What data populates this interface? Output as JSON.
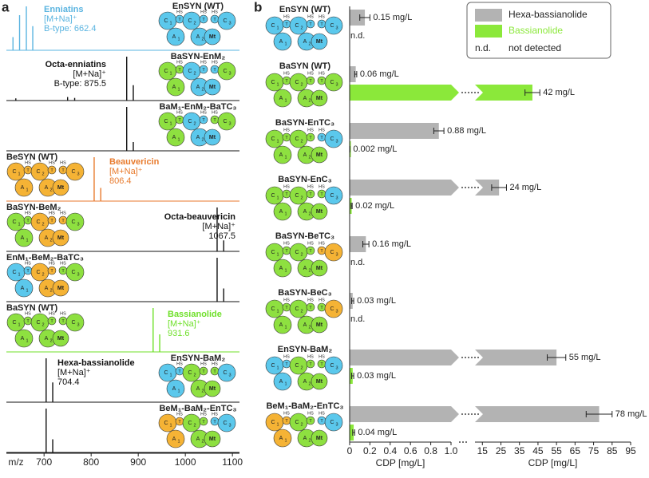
{
  "domain_labels": {
    "C": "C",
    "A": "A",
    "T": "T",
    "Mt": "Mt",
    "HS": "HS",
    "index": [
      "1",
      "2",
      "3"
    ]
  },
  "chart_data": [
    {
      "type": "spectrum",
      "panel_label": "a",
      "xlabel": "m/z",
      "xlim": [
        620,
        1115
      ],
      "xticks": [
        700,
        800,
        900,
        1000,
        1100
      ],
      "series": [
        {
          "name": "EnSYN (WT)",
          "color": "#5ab4e0",
          "domain_colors": [
            "#5bc8ec",
            "#5bc8ec",
            "#5bc8ec",
            "#5bc8ec"
          ],
          "x": [
            634,
            648,
            662.4,
            676
          ],
          "values": [
            30,
            80,
            100,
            55
          ],
          "annotation": [
            "Enniatins",
            "[M+Na]⁺",
            "B-type: 662.4"
          ]
        },
        {
          "name": "BaSYN-EnM₂",
          "color": "#111111",
          "domain_colors": [
            "#8ee040",
            "#5bc8ec",
            "#5bc8ec",
            "#8ee040"
          ],
          "x": [
            640,
            750,
            765,
            875.5,
            889.5
          ],
          "values": [
            5,
            8,
            6,
            100,
            35
          ],
          "annotation": [
            "Octa-enniatins",
            "[M+Na]⁺",
            "B-type: 875.5"
          ]
        },
        {
          "name": "BaM₁-EnM₂-BaTC₃",
          "color": "#111111",
          "domain_colors": [
            "#8ee040",
            "#5bc8ec",
            "#8ee040",
            "#8ee040"
          ],
          "x": [
            875.5,
            889.5
          ],
          "values": [
            100,
            20
          ]
        },
        {
          "name": "BeSYN (WT)",
          "color": "#e87a2c",
          "domain_colors": [
            "#f5b335",
            "#f5b335",
            "#f5b335",
            "#f5b335"
          ],
          "x": [
            806.4,
            820.4
          ],
          "values": [
            100,
            30
          ],
          "annotation": [
            "Beauvericin",
            "[M+Na]⁺",
            "806.4"
          ]
        },
        {
          "name": "BaSYN-BeM₂",
          "color": "#111111",
          "domain_colors": [
            "#8ee040",
            "#f5b335",
            "#f5b335",
            "#8ee040"
          ],
          "x": [
            1067.5,
            1081.5
          ],
          "values": [
            100,
            25
          ],
          "annotation": [
            "Octa-beauvericin",
            "[M+Na]⁺",
            "1067.5"
          ]
        },
        {
          "name": "EnM₁-BeM₂-BaTC₃",
          "color": "#111111",
          "domain_colors": [
            "#5bc8ec",
            "#f5b335",
            "#8ee040",
            "#8ee040"
          ],
          "x": [
            1067.5,
            1081.5
          ],
          "values": [
            100,
            30
          ]
        },
        {
          "name": "BaSYN (WT)",
          "color": "#6fe02a",
          "domain_colors": [
            "#8ee040",
            "#8ee040",
            "#8ee040",
            "#8ee040"
          ],
          "x": [
            931.6,
            945.6
          ],
          "values": [
            100,
            40
          ],
          "annotation": [
            "Bassianolide",
            "[M+Na]⁺",
            "931.6"
          ]
        },
        {
          "name": "EnSYN-BaM₂",
          "color": "#111111",
          "domain_colors": [
            "#5bc8ec",
            "#8ee040",
            "#8ee040",
            "#5bc8ec"
          ],
          "x": [
            704.4,
            718.4
          ],
          "values": [
            100,
            45
          ],
          "annotation": [
            "Hexa-bassianolide",
            "[M+Na]⁺",
            "704.4"
          ]
        },
        {
          "name": "BeM₁-BaM₂-EnTC₃",
          "color": "#111111",
          "domain_colors": [
            "#f5b335",
            "#8ee040",
            "#5bc8ec",
            "#5bc8ec"
          ],
          "x": [
            704.4,
            718.4
          ],
          "values": [
            100,
            30
          ]
        }
      ]
    },
    {
      "type": "broken-bar",
      "panel_label": "b",
      "legend": "upper right",
      "categories": [
        "EnSYN (WT)",
        "BaSYN (WT)",
        "BaSYN-EnTC₃",
        "BaSYN-EnC₃",
        "BaSYN-BeTC₃",
        "BaSYN-BeC₃",
        "EnSYN-BaM₂",
        "BeM₁-BaM₂-EnTC₃"
      ],
      "domain_colors": [
        [
          "#5bc8ec",
          "#5bc8ec",
          "#5bc8ec",
          "#5bc8ec"
        ],
        [
          "#8ee040",
          "#8ee040",
          "#8ee040",
          "#8ee040"
        ],
        [
          "#8ee040",
          "#8ee040",
          "#5bc8ec",
          "#5bc8ec"
        ],
        [
          "#8ee040",
          "#8ee040",
          "#8ee040",
          "#5bc8ec"
        ],
        [
          "#8ee040",
          "#8ee040",
          "#f5b335",
          "#f5b335"
        ],
        [
          "#8ee040",
          "#8ee040",
          "#8ee040",
          "#f5b335"
        ],
        [
          "#5bc8ec",
          "#8ee040",
          "#8ee040",
          "#5bc8ec"
        ],
        [
          "#f5b335",
          "#8ee040",
          "#5bc8ec",
          "#5bc8ec"
        ]
      ],
      "xlabel": "CDP [mg/L]",
      "xlim": [
        0,
        1
      ],
      "xticks": [
        0,
        0.2,
        0.4,
        0.6,
        0.8,
        {
          "value": 1,
          "label": "1.0"
        }
      ],
      "x2label": "CDP [mg/L]",
      "x2lim": [
        11,
        95
      ],
      "x2ticks": [
        15,
        25,
        35,
        45,
        55,
        65,
        75,
        85,
        95
      ],
      "series": [
        {
          "name": "Hexa-bassianolide",
          "color": "#b3b3b3",
          "values": [
            0.15,
            0.06,
            0.88,
            24,
            0.16,
            0.03,
            55,
            78
          ],
          "errors": [
            0.05,
            0.01,
            0.05,
            4,
            0.03,
            0.01,
            5,
            7
          ],
          "value_labels": [
            "0.15 mg/L",
            "0.06 mg/L",
            "0.88 mg/L",
            "24 mg/L",
            "0.16 mg/L",
            "0.03 mg/L",
            "55 mg/L",
            "78 mg/L"
          ]
        },
        {
          "name": "Bassianolide",
          "color": "#8be83a",
          "values": [
            null,
            42,
            0.002,
            0.02,
            null,
            null,
            0.03,
            0.04
          ],
          "errors": [
            null,
            4,
            0.001,
            0.005,
            null,
            null,
            0.01,
            0.01
          ],
          "value_labels": [
            "n.d.",
            "42 mg/L",
            "0.002 mg/L",
            "0.02 mg/L",
            "n.d.",
            "n.d.",
            "0.03 mg/L",
            "0.04 mg/L"
          ]
        }
      ],
      "legend_note": {
        "key": "n.d.",
        "text": "not detected"
      }
    }
  ]
}
